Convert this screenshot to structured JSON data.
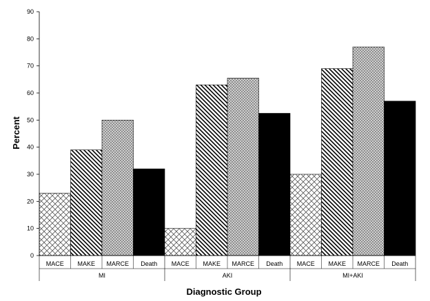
{
  "chart_data": {
    "type": "bar",
    "title": "",
    "xlabel": "Diagnostic Group",
    "ylabel": "Percent",
    "ylim": [
      0,
      90
    ],
    "yticks": [
      0,
      10,
      20,
      30,
      40,
      50,
      60,
      70,
      80,
      90
    ],
    "grid": false,
    "legend": "none",
    "groups": [
      {
        "name": "MI",
        "bars": [
          {
            "label": "MACE",
            "value": 23,
            "pattern": "crosshatch"
          },
          {
            "label": "MAKE",
            "value": 39,
            "pattern": "diagonal"
          },
          {
            "label": "MARCE",
            "value": 50,
            "pattern": "dots"
          },
          {
            "label": "Death",
            "value": 32,
            "pattern": "solid"
          }
        ]
      },
      {
        "name": "AKI",
        "bars": [
          {
            "label": "MACE",
            "value": 10,
            "pattern": "crosshatch"
          },
          {
            "label": "MAKE",
            "value": 63,
            "pattern": "diagonal"
          },
          {
            "label": "MARCE",
            "value": 65.5,
            "pattern": "dots"
          },
          {
            "label": "Death",
            "value": 52.5,
            "pattern": "solid"
          }
        ]
      },
      {
        "name": "MI+AKI",
        "bars": [
          {
            "label": "MACE",
            "value": 30,
            "pattern": "crosshatch"
          },
          {
            "label": "MAKE",
            "value": 69,
            "pattern": "diagonal"
          },
          {
            "label": "MARCE",
            "value": 77,
            "pattern": "dots"
          },
          {
            "label": "Death",
            "value": 57,
            "pattern": "solid"
          }
        ]
      }
    ],
    "colors": {
      "solid": "#000000",
      "dots": "#9a9a9a",
      "stroke": "#000000"
    }
  }
}
